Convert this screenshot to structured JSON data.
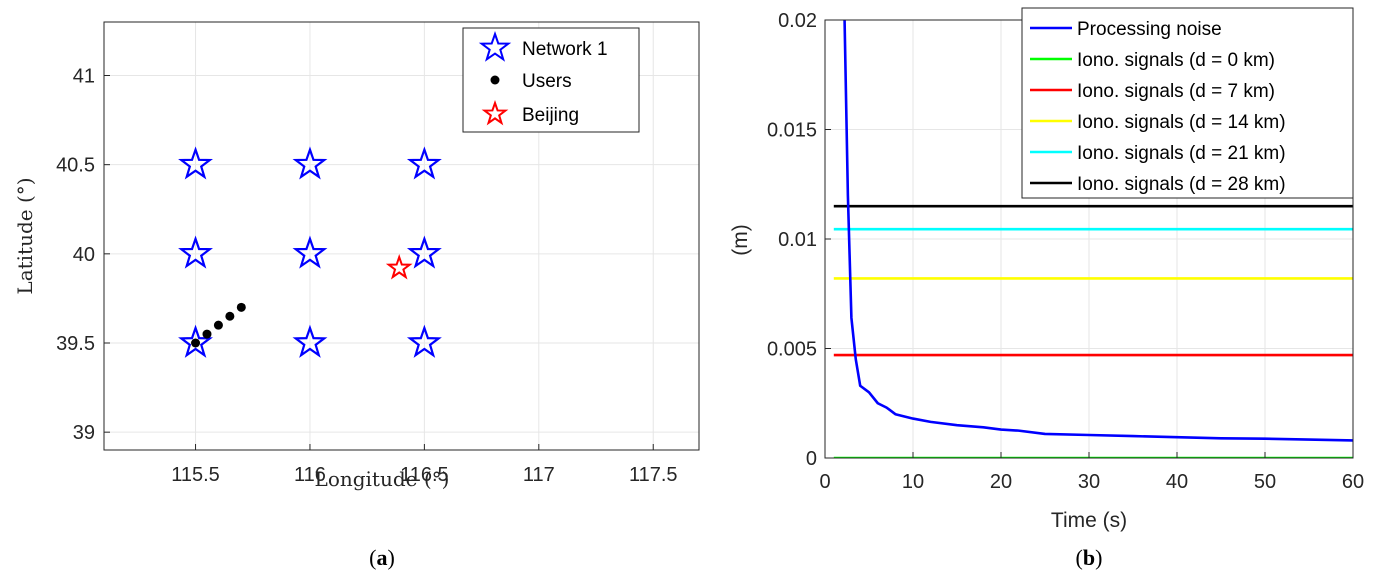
{
  "chart_data": [
    {
      "id": "a",
      "type": "scatter",
      "panel_label": "a",
      "xlabel": "Longitude (°)",
      "ylabel": "Latitude (°)",
      "xlim": [
        115.1,
        117.7
      ],
      "ylim": [
        38.9,
        41.3
      ],
      "xticks": [
        115.5,
        116,
        116.5,
        117,
        117.5
      ],
      "xtick_labels": [
        "115.5",
        "116",
        "116.5",
        "117",
        "117.5"
      ],
      "yticks": [
        39,
        39.5,
        40,
        40.5,
        41
      ],
      "ytick_labels": [
        "39",
        "39.5",
        "40",
        "40.5",
        "41"
      ],
      "grid": true,
      "legend_position": "top-right",
      "series": [
        {
          "name": "Network 1",
          "marker": "star",
          "color": "#0000ff",
          "points": [
            [
              115.5,
              40.5
            ],
            [
              116,
              40.5
            ],
            [
              116.5,
              40.5
            ],
            [
              115.5,
              40.0
            ],
            [
              116,
              40.0
            ],
            [
              116.5,
              40.0
            ],
            [
              115.5,
              39.5
            ],
            [
              116,
              39.5
            ],
            [
              116.5,
              39.5
            ]
          ]
        },
        {
          "name": "Users",
          "marker": "dot",
          "color": "#000000",
          "points": [
            [
              115.5,
              39.5
            ],
            [
              115.55,
              39.55
            ],
            [
              115.6,
              39.6
            ],
            [
              115.65,
              39.65
            ],
            [
              115.7,
              39.7
            ]
          ]
        },
        {
          "name": "Beijing",
          "marker": "star",
          "color": "#ff0000",
          "points": [
            [
              116.39,
              39.92
            ]
          ]
        }
      ]
    },
    {
      "id": "b",
      "type": "line",
      "panel_label": "b",
      "xlabel": "Time (s)",
      "ylabel": "(m)",
      "xlim": [
        0,
        60
      ],
      "ylim": [
        0,
        0.02
      ],
      "xticks": [
        0,
        10,
        20,
        30,
        40,
        50,
        60
      ],
      "xtick_labels": [
        "0",
        "10",
        "20",
        "30",
        "40",
        "50",
        "60"
      ],
      "yticks": [
        0,
        0.005,
        0.01,
        0.015,
        0.02
      ],
      "ytick_labels": [
        "0",
        "0.005",
        "0.01",
        "0.015",
        "0.02"
      ],
      "grid": true,
      "legend_position": "top-right",
      "series": [
        {
          "name": "Processing noise",
          "color": "#0000ff",
          "x": [
            2.2,
            2.6,
            3,
            3.5,
            4,
            5,
            6,
            7,
            8,
            10,
            12,
            15,
            18,
            20,
            22,
            25,
            30,
            35,
            40,
            45,
            50,
            55,
            60
          ],
          "y": [
            0.0205,
            0.012,
            0.0064,
            0.0045,
            0.0033,
            0.003,
            0.0025,
            0.0023,
            0.002,
            0.0018,
            0.00165,
            0.0015,
            0.0014,
            0.0013,
            0.00125,
            0.0011,
            0.00105,
            0.001,
            0.00095,
            0.0009,
            0.00088,
            0.00084,
            0.0008
          ]
        },
        {
          "name": "Iono. signals (d = 0 km)",
          "color": "#00ff00",
          "x": [
            1,
            60
          ],
          "y": [
            0,
            0
          ]
        },
        {
          "name": "Iono. signals (d = 7 km)",
          "color": "#ff0000",
          "x": [
            1,
            60
          ],
          "y": [
            0.0047,
            0.0047
          ]
        },
        {
          "name": "Iono. signals (d = 14 km)",
          "color": "#ffff00",
          "x": [
            1,
            60
          ],
          "y": [
            0.0082,
            0.0082
          ]
        },
        {
          "name": "Iono. signals (d = 21 km)",
          "color": "#00ffff",
          "x": [
            1,
            60
          ],
          "y": [
            0.01045,
            0.01045
          ]
        },
        {
          "name": "Iono. signals (d = 28 km)",
          "color": "#000000",
          "x": [
            1,
            60
          ],
          "y": [
            0.0115,
            0.0115
          ]
        }
      ]
    }
  ]
}
